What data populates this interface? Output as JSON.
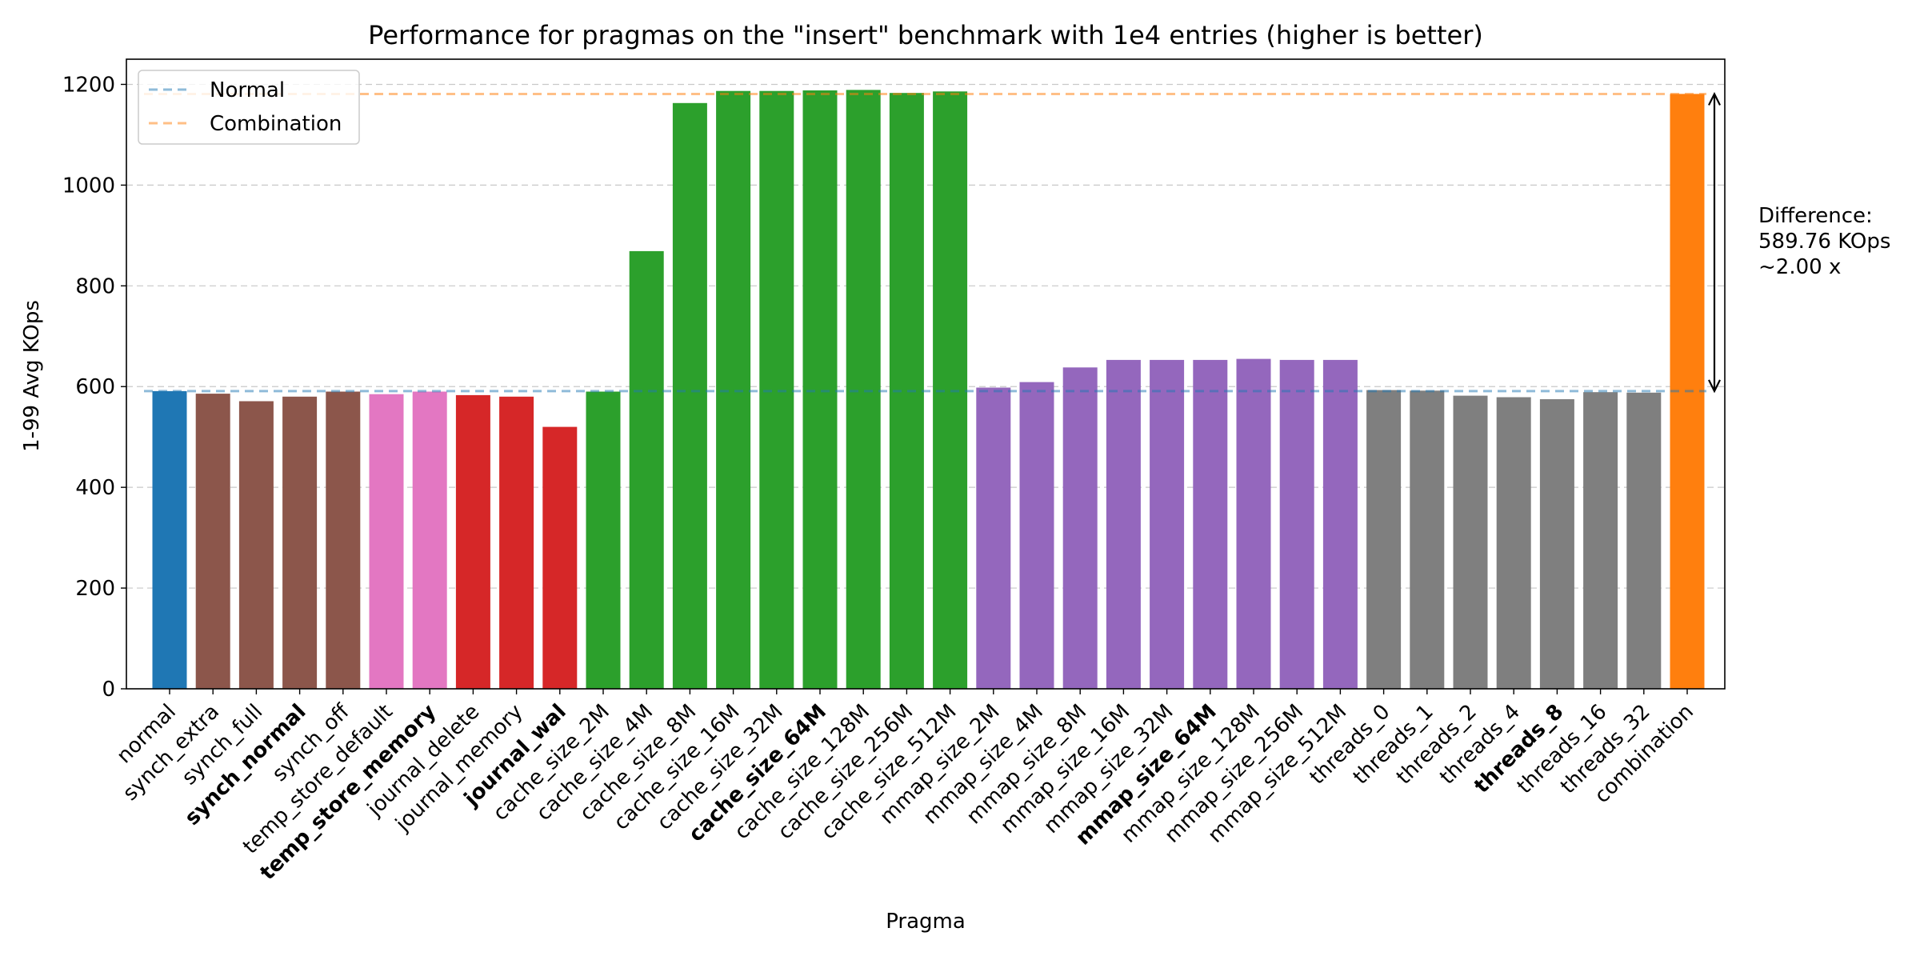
{
  "chart_data": {
    "type": "bar",
    "title": "Performance for pragmas on the \"insert\" benchmark with 1e4 entries (higher is better)",
    "xlabel": "Pragma",
    "ylabel": "1-99 Avg KOps",
    "ylim": [
      0,
      1250
    ],
    "yticks": [
      0,
      200,
      400,
      600,
      800,
      1000,
      1200
    ],
    "grid": "horizontal, dashed",
    "categories": [
      "normal",
      "synch_extra",
      "synch_full",
      "synch_normal",
      "synch_off",
      "temp_store_default",
      "temp_store_memory",
      "journal_delete",
      "journal_memory",
      "journal_wal",
      "cache_size_2M",
      "cache_size_4M",
      "cache_size_8M",
      "cache_size_16M",
      "cache_size_32M",
      "cache_size_64M",
      "cache_size_128M",
      "cache_size_256M",
      "cache_size_512M",
      "mmap_size_2M",
      "mmap_size_4M",
      "mmap_size_8M",
      "mmap_size_16M",
      "mmap_size_32M",
      "mmap_size_64M",
      "mmap_size_128M",
      "mmap_size_256M",
      "mmap_size_512M",
      "threads_0",
      "threads_1",
      "threads_2",
      "threads_4",
      "threads_8",
      "threads_16",
      "threads_32",
      "combination"
    ],
    "values": [
      591,
      586,
      571,
      580,
      590,
      585,
      590,
      583,
      580,
      520,
      590,
      869,
      1163,
      1187,
      1187,
      1188,
      1189,
      1183,
      1186,
      598,
      609,
      638,
      653,
      653,
      653,
      655,
      653,
      653,
      593,
      592,
      582,
      579,
      575,
      589,
      588,
      1181
    ],
    "bold_labels": [
      "synch_normal",
      "temp_store_memory",
      "journal_wal",
      "cache_size_64M",
      "mmap_size_64M",
      "threads_8"
    ],
    "bar_colors": [
      "#1f77b4",
      "#8c564b",
      "#8c564b",
      "#8c564b",
      "#8c564b",
      "#e377c2",
      "#e377c2",
      "#d62728",
      "#d62728",
      "#d62728",
      "#2ca02c",
      "#2ca02c",
      "#2ca02c",
      "#2ca02c",
      "#2ca02c",
      "#2ca02c",
      "#2ca02c",
      "#2ca02c",
      "#2ca02c",
      "#9467bd",
      "#9467bd",
      "#9467bd",
      "#9467bd",
      "#9467bd",
      "#9467bd",
      "#9467bd",
      "#9467bd",
      "#9467bd",
      "#7f7f7f",
      "#7f7f7f",
      "#7f7f7f",
      "#7f7f7f",
      "#7f7f7f",
      "#7f7f7f",
      "#7f7f7f",
      "#ff7f0e"
    ],
    "reference_lines": [
      {
        "name": "Normal",
        "value": 591,
        "color": "#1f77b4"
      },
      {
        "name": "Combination",
        "value": 1181,
        "color": "#ff7f0e"
      }
    ],
    "legend": {
      "position": "top-left",
      "entries": [
        "Normal",
        "Combination"
      ]
    },
    "annotation": {
      "from": 591,
      "to": 1181,
      "lines": [
        "Difference:",
        "589.76 KOps",
        "~2.00 x"
      ]
    }
  }
}
